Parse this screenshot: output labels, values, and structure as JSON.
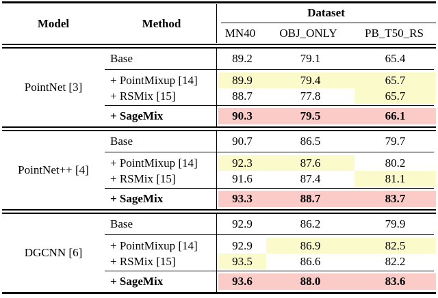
{
  "table": {
    "header": {
      "model": "Model",
      "method": "Method",
      "dataset_group": "Dataset",
      "columns": [
        "MN40",
        "OBJ_ONLY",
        "PB_T50_RS"
      ]
    },
    "colors": {
      "best": "#FBCBC8",
      "second": "#FAFACB"
    },
    "legend_meaning": {
      "best": "best result (pink, bold)",
      "second": "second best result (pale yellow)"
    },
    "sections": [
      {
        "model": "PointNet [3]",
        "rows": [
          {
            "method": "Base",
            "values": [
              "89.2",
              "79.1",
              "65.4"
            ],
            "highlight": [
              null,
              null,
              null
            ]
          },
          {
            "method": "+ PointMixup [14]",
            "values": [
              "89.9",
              "79.4",
              "65.7"
            ],
            "highlight": [
              "second",
              "second",
              "second"
            ]
          },
          {
            "method": "+ RSMix [15]",
            "values": [
              "88.7",
              "77.8",
              "65.7"
            ],
            "highlight": [
              null,
              null,
              "second"
            ]
          },
          {
            "method": "+ SageMix",
            "values": [
              "90.3",
              "79.5",
              "66.1"
            ],
            "highlight": [
              "best",
              "best",
              "best"
            ]
          }
        ]
      },
      {
        "model": "PointNet++ [4]",
        "rows": [
          {
            "method": "Base",
            "values": [
              "90.7",
              "86.5",
              "79.7"
            ],
            "highlight": [
              null,
              null,
              null
            ]
          },
          {
            "method": "+ PointMixup [14]",
            "values": [
              "92.3",
              "87.6",
              "80.2"
            ],
            "highlight": [
              "second",
              "second",
              null
            ]
          },
          {
            "method": "+ RSMix [15]",
            "values": [
              "91.6",
              "87.4",
              "81.1"
            ],
            "highlight": [
              null,
              null,
              "second"
            ]
          },
          {
            "method": "+ SageMix",
            "values": [
              "93.3",
              "88.7",
              "83.7"
            ],
            "highlight": [
              "best",
              "best",
              "best"
            ]
          }
        ]
      },
      {
        "model": "DGCNN [6]",
        "rows": [
          {
            "method": "Base",
            "values": [
              "92.9",
              "86.2",
              "79.9"
            ],
            "highlight": [
              null,
              null,
              null
            ]
          },
          {
            "method": "+ PointMixup [14]",
            "values": [
              "92.9",
              "86.9",
              "82.5"
            ],
            "highlight": [
              null,
              "second",
              "second"
            ]
          },
          {
            "method": "+ RSMix [15]",
            "values": [
              "93.5",
              "86.6",
              "82.2"
            ],
            "highlight": [
              "second",
              null,
              null
            ]
          },
          {
            "method": "+ SageMix",
            "values": [
              "93.6",
              "88.0",
              "83.6"
            ],
            "highlight": [
              "best",
              "best",
              "best"
            ]
          }
        ]
      }
    ]
  }
}
